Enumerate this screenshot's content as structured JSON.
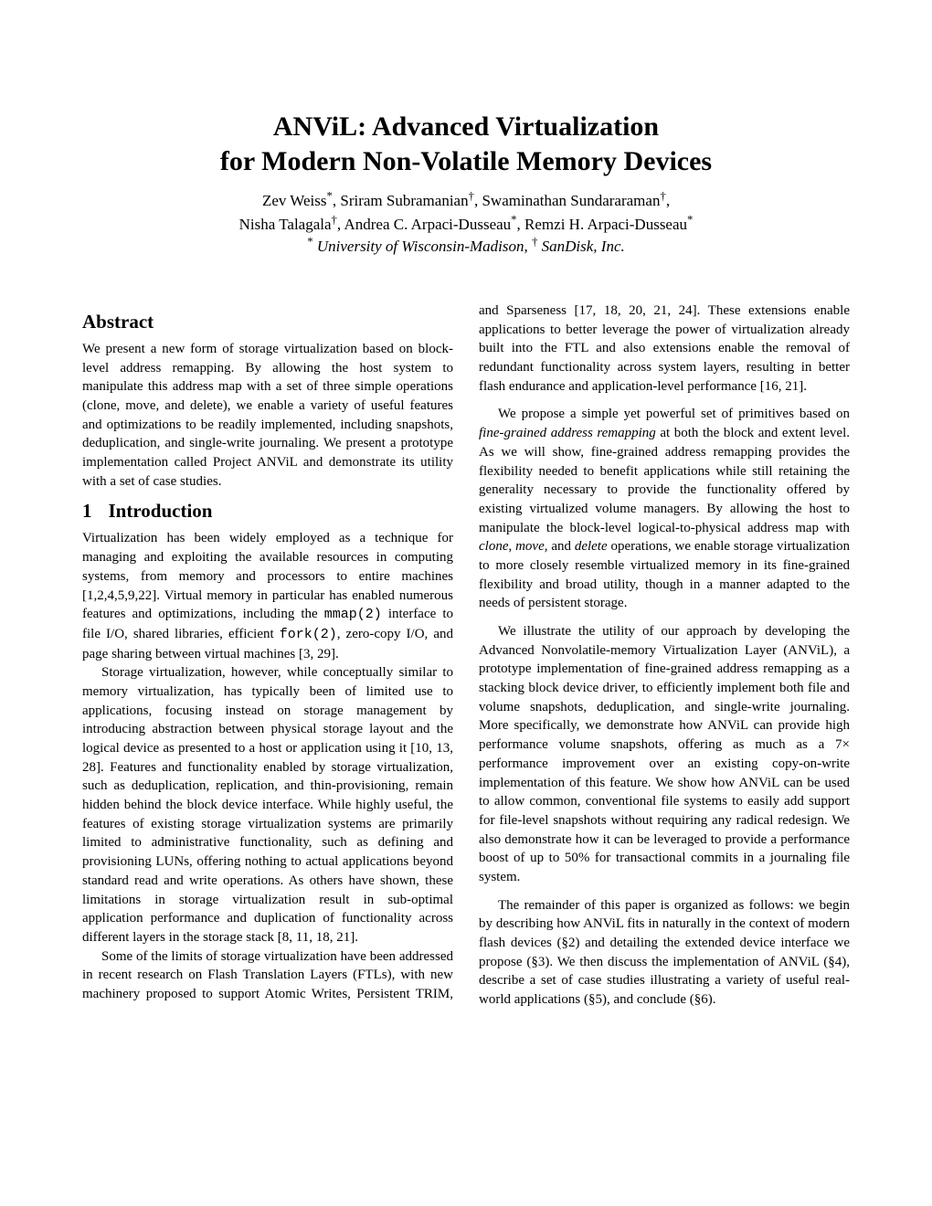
{
  "title_line1": "ANViL: Advanced Virtualization",
  "title_line2": "for Modern Non-Volatile Memory Devices",
  "authors_line1_parts": {
    "a1": "Zev Weiss",
    "s1": "*",
    "a2": ", Sriram Subramanian",
    "s2": "†",
    "a3": ", Swaminathan Sundararaman",
    "s3": "†",
    "a4": ","
  },
  "authors_line2_parts": {
    "a1": "Nisha Talagala",
    "s1": "†",
    "a2": ", Andrea C. Arpaci-Dusseau",
    "s2": "*",
    "a3": ", Remzi H. Arpaci-Dusseau",
    "s3": "*"
  },
  "affiliation_parts": {
    "s1": "*",
    "t1": " University of Wisconsin-Madison",
    "comma": ", ",
    "s2": "†",
    "t2": " SanDisk, Inc."
  },
  "abstract_heading": "Abstract",
  "abstract_body": "We present a new form of storage virtualization based on block-level address remapping. By allowing the host system to manipulate this address map with a set of three simple operations (clone, move, and delete), we enable a variety of useful features and optimizations to be readily implemented, including snapshots, deduplication, and single-write journaling. We present a prototype implementation called Project ANViL and demonstrate its utility with a set of case studies.",
  "intro_num": "1",
  "intro_heading": "Introduction",
  "intro_p1_a": "Virtualization has been widely employed as a technique for managing and exploiting the available resources in computing systems, from memory and processors to entire machines [1,2,4,5,9,22]. Virtual memory in particular has enabled numerous features and optimizations, including the ",
  "intro_p1_mono1": "mmap(2)",
  "intro_p1_b": " interface to file I/O, shared libraries, efficient ",
  "intro_p1_mono2": "fork(2)",
  "intro_p1_c": ", zero-copy I/O, and page sharing between virtual machines [3, 29].",
  "intro_p2": "Storage virtualization, however, while conceptually similar to memory virtualization, has typically been of limited use to applications, focusing instead on storage management by introducing abstraction between physical storage layout and the logical device as presented to a host or application using it [10, 13, 28]. Features and functionality enabled by storage virtualization, such as deduplication, replication, and thin-provisioning, remain hidden behind the block device interface. While highly useful, the features of existing storage virtualization systems are primarily limited to administrative functionality, such as defining and provisioning LUNs, offering nothing to actual applications beyond standard read and write operations. As others have shown, these limitations in storage virtualization result in sub-optimal application performance and duplication of functionality across different layers in the storage stack [8, 11, 18, 21].",
  "intro_p3": "Some of the limits of storage virtualization have been addressed in recent research on Flash Translation Layers (FTLs), with new machinery proposed to support Atomic Writes, Persistent TRIM, and Sparseness [17, 18, 20, 21, 24]. These extensions enable applications to better leverage the power of virtualization already built into the FTL and also extensions enable the removal of redundant functionality across system layers, resulting in better flash endurance and application-level performance [16, 21].",
  "intro_p4_a": "We propose a simple yet powerful set of primitives based on ",
  "intro_p4_em1": "fine-grained address remapping",
  "intro_p4_b": " at both the block and extent level. As we will show, fine-grained address remapping provides the flexibility needed to benefit applications while still retaining the generality necessary to provide the functionality offered by existing virtualized volume managers. By allowing the host to manipulate the block-level logical-to-physical address map with ",
  "intro_p4_em2": "clone",
  "intro_p4_c": ", ",
  "intro_p4_em3": "move",
  "intro_p4_d": ", and ",
  "intro_p4_em4": "delete",
  "intro_p4_e": " operations, we enable storage virtualization to more closely resemble virtualized memory in its fine-grained flexibility and broad utility, though in a manner adapted to the needs of persistent storage.",
  "intro_p5": "We illustrate the utility of our approach by developing the Advanced Nonvolatile-memory Virtualization Layer (ANViL), a prototype implementation of fine-grained address remapping as a stacking block device driver, to efficiently implement both file and volume snapshots, deduplication, and single-write journaling. More specifically, we demonstrate how ANViL can provide high performance volume snapshots, offering as much as a 7× performance improvement over an existing copy-on-write implementation of this feature. We show how ANViL can be used to allow common, conventional file systems to easily add support for file-level snapshots without requiring any radical redesign. We also demonstrate how it can be leveraged to provide a performance boost of up to 50% for transactional commits in a journaling file system.",
  "intro_p6": "The remainder of this paper is organized as follows: we begin by describing how ANViL fits in naturally in the context of modern flash devices (§2) and detailing the extended device interface we propose (§3). We then discuss the implementation of ANViL (§4), describe a set of case studies illustrating a variety of useful real-world applications (§5), and conclude (§6)."
}
